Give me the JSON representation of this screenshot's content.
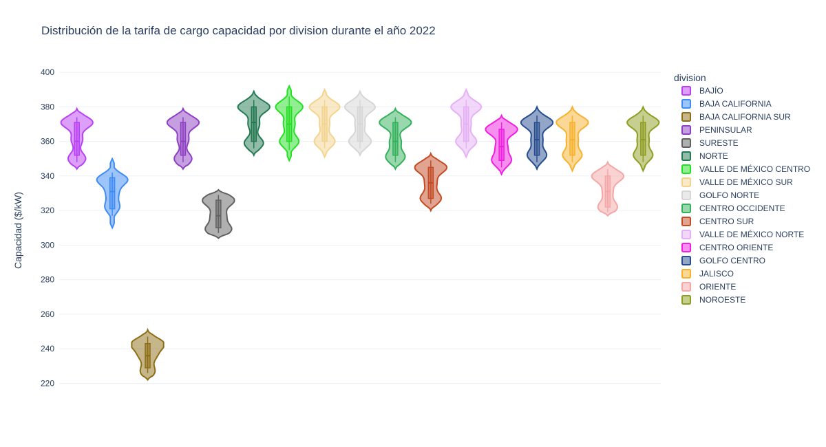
{
  "chart_data": {
    "type": "violin",
    "title": "Distribución de la tarifa de cargo capacidad por division durante el año 2022",
    "xlabel": "",
    "ylabel": "Capacidad ($/kW)",
    "ylim": [
      215,
      410
    ],
    "yticks": [
      220,
      240,
      260,
      280,
      300,
      320,
      340,
      360,
      380,
      400
    ],
    "grid": true,
    "legend_title": "division",
    "legend_position": "right",
    "series": [
      {
        "name": "BAJÍO",
        "color": "#b940f5",
        "q1": 352,
        "median": 360,
        "q3": 371,
        "min": 348,
        "max": 374,
        "vmin": 344,
        "vmax": 379,
        "bulges": [
          [
            350,
            0.55
          ],
          [
            361,
            0.35
          ],
          [
            371,
            1.0
          ]
        ]
      },
      {
        "name": "BAJA CALIFORNIA",
        "color": "#3e8bf6",
        "q1": 321,
        "median": 331,
        "q3": 339,
        "min": 317,
        "max": 342,
        "vmin": 310,
        "vmax": 350,
        "bulges": [
          [
            322,
            0.45
          ],
          [
            330,
            0.35
          ],
          [
            338,
            0.95
          ]
        ]
      },
      {
        "name": "BAJA CALIFORNIA SUR",
        "color": "#8d6e14",
        "q1": 229,
        "median": 236,
        "q3": 243,
        "min": 226,
        "max": 247,
        "vmin": 222,
        "vmax": 251,
        "bulges": [
          [
            227,
            0.45
          ],
          [
            236,
            0.5
          ],
          [
            243,
            1.0
          ]
        ]
      },
      {
        "name": "PENINSULAR",
        "color": "#8e3fc4",
        "q1": 352,
        "median": 360,
        "q3": 371,
        "min": 348,
        "max": 374,
        "vmin": 344,
        "vmax": 379,
        "bulges": [
          [
            350,
            0.55
          ],
          [
            361,
            0.35
          ],
          [
            371,
            1.0
          ]
        ]
      },
      {
        "name": "SURESTE",
        "color": "#616161",
        "q1": 310,
        "median": 317,
        "q3": 326,
        "min": 307,
        "max": 329,
        "vmin": 304,
        "vmax": 332,
        "bulges": [
          [
            309,
            0.8
          ],
          [
            317,
            0.45
          ],
          [
            326,
            1.0
          ]
        ]
      },
      {
        "name": "NORTE",
        "color": "#237a52",
        "q1": 360,
        "median": 371,
        "q3": 380,
        "min": 356,
        "max": 384,
        "vmin": 352,
        "vmax": 389,
        "bulges": [
          [
            359,
            0.6
          ],
          [
            370,
            0.35
          ],
          [
            380,
            1.0
          ]
        ]
      },
      {
        "name": "VALLE DE MÉXICO CENTRO",
        "color": "#24e024",
        "q1": 360,
        "median": 370,
        "q3": 380,
        "min": 355,
        "max": 386,
        "vmin": 349,
        "vmax": 392,
        "bulges": [
          [
            360,
            0.6
          ],
          [
            370,
            0.35
          ],
          [
            380,
            0.85
          ]
        ]
      },
      {
        "name": "VALLE DE MÉXICO SUR",
        "color": "#f3d48f",
        "q1": 360,
        "median": 370,
        "q3": 380,
        "min": 356,
        "max": 384,
        "vmin": 351,
        "vmax": 390,
        "bulges": [
          [
            360,
            0.65
          ],
          [
            370,
            0.3
          ],
          [
            380,
            0.95
          ]
        ]
      },
      {
        "name": "GOLFO NORTE",
        "color": "#d6d6d6",
        "q1": 360,
        "median": 370,
        "q3": 380,
        "min": 356,
        "max": 384,
        "vmin": 352,
        "vmax": 389,
        "bulges": [
          [
            360,
            0.7
          ],
          [
            370,
            0.3
          ],
          [
            380,
            0.95
          ]
        ]
      },
      {
        "name": "CENTRO OCCIDENTE",
        "color": "#32b15a",
        "q1": 352,
        "median": 360,
        "q3": 371,
        "min": 348,
        "max": 374,
        "vmin": 344,
        "vmax": 379,
        "bulges": [
          [
            351,
            0.6
          ],
          [
            360,
            0.35
          ],
          [
            371,
            1.0
          ]
        ]
      },
      {
        "name": "CENTRO SUR",
        "color": "#c44a23",
        "q1": 327,
        "median": 336,
        "q3": 345,
        "min": 324,
        "max": 349,
        "vmin": 320,
        "vmax": 353,
        "bulges": [
          [
            327,
            0.65
          ],
          [
            336,
            0.35
          ],
          [
            345,
            1.0
          ]
        ]
      },
      {
        "name": "VALLE DE MÉXICO NORTE",
        "color": "#e5b0f5",
        "q1": 360,
        "median": 370,
        "q3": 380,
        "min": 356,
        "max": 384,
        "vmin": 351,
        "vmax": 390,
        "bulges": [
          [
            360,
            0.65
          ],
          [
            370,
            0.3
          ],
          [
            380,
            0.95
          ]
        ]
      },
      {
        "name": "CENTRO ORIENTE",
        "color": "#f01fe0",
        "q1": 349,
        "median": 357,
        "q3": 367,
        "min": 345,
        "max": 371,
        "vmin": 341,
        "vmax": 375,
        "bulges": [
          [
            349,
            0.6
          ],
          [
            357,
            0.35
          ],
          [
            367,
            1.0
          ]
        ]
      },
      {
        "name": "GOLFO CENTRO",
        "color": "#274d8f",
        "q1": 352,
        "median": 361,
        "q3": 371,
        "min": 348,
        "max": 375,
        "vmin": 344,
        "vmax": 380,
        "bulges": [
          [
            352,
            0.6
          ],
          [
            361,
            0.35
          ],
          [
            371,
            1.0
          ]
        ]
      },
      {
        "name": "JALISCO",
        "color": "#f8b12c",
        "q1": 352,
        "median": 361,
        "q3": 371,
        "min": 348,
        "max": 375,
        "vmin": 343,
        "vmax": 380,
        "bulges": [
          [
            352,
            0.6
          ],
          [
            361,
            0.35
          ],
          [
            371,
            1.0
          ]
        ]
      },
      {
        "name": "ORIENTE",
        "color": "#f5a6a6",
        "q1": 322,
        "median": 331,
        "q3": 340,
        "min": 319,
        "max": 344,
        "vmin": 317,
        "vmax": 348,
        "bulges": [
          [
            322,
            0.6
          ],
          [
            331,
            0.3
          ],
          [
            340,
            1.0
          ]
        ]
      },
      {
        "name": "NOROESTE",
        "color": "#8e9e21",
        "q1": 352,
        "median": 361,
        "q3": 371,
        "min": 348,
        "max": 375,
        "vmin": 343,
        "vmax": 380,
        "bulges": [
          [
            352,
            0.6
          ],
          [
            361,
            0.35
          ],
          [
            371,
            1.0
          ]
        ]
      }
    ]
  }
}
